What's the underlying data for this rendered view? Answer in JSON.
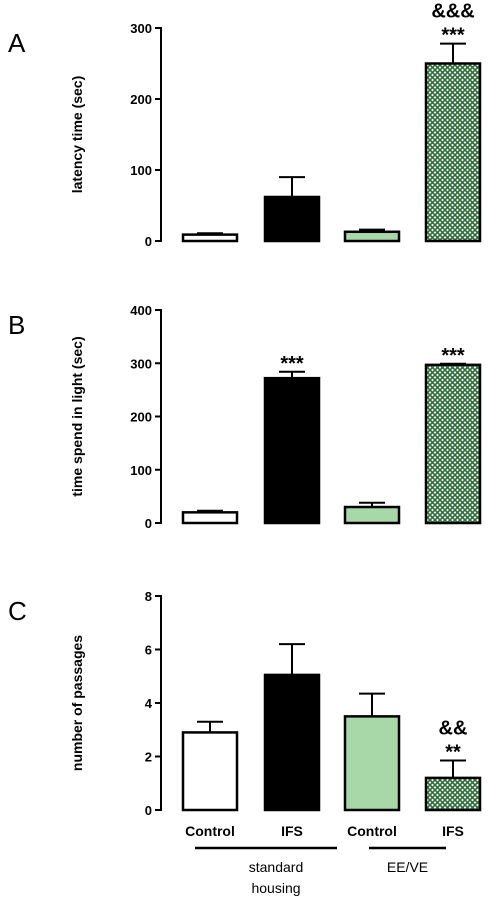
{
  "colors": {
    "control_standard": "#ffffff",
    "ifs_standard": "#000000",
    "control_ee": "#a8d8a8",
    "ifs_ee_hatch": "#2e6e3a"
  },
  "chart_data": [
    {
      "panel": "A",
      "type": "bar",
      "ylabel": "latency time (sec)",
      "ylim": [
        0,
        300
      ],
      "yticks": [
        0,
        100,
        200,
        300
      ],
      "categories": [
        "Control",
        "IFS",
        "Control",
        "IFS"
      ],
      "values": [
        9,
        62,
        13,
        250
      ],
      "errors": [
        2,
        28,
        3,
        28
      ],
      "significance": [
        "",
        "",
        "",
        "&&&\n***"
      ]
    },
    {
      "panel": "B",
      "type": "bar",
      "ylabel": "time spend in light (sec)",
      "ylim": [
        0,
        400
      ],
      "yticks": [
        0,
        100,
        200,
        300,
        400
      ],
      "categories": [
        "Control",
        "IFS",
        "Control",
        "IFS"
      ],
      "values": [
        20,
        272,
        30,
        297
      ],
      "errors": [
        3,
        12,
        8,
        2
      ],
      "significance": [
        "",
        "***",
        "",
        "***"
      ]
    },
    {
      "panel": "C",
      "type": "bar",
      "ylabel": "number of passages",
      "ylim": [
        0,
        8
      ],
      "yticks": [
        0,
        2,
        4,
        6,
        8
      ],
      "categories": [
        "Control",
        "IFS",
        "Control",
        "IFS"
      ],
      "values": [
        2.9,
        5.05,
        3.5,
        1.2
      ],
      "errors": [
        0.4,
        1.15,
        0.85,
        0.65
      ],
      "significance": [
        "",
        "",
        "",
        "&&\n**"
      ]
    }
  ],
  "groups": [
    {
      "label_line1": "standard",
      "label_line2": "housing"
    },
    {
      "label_line1": "EE/VE",
      "label_line2": ""
    }
  ]
}
